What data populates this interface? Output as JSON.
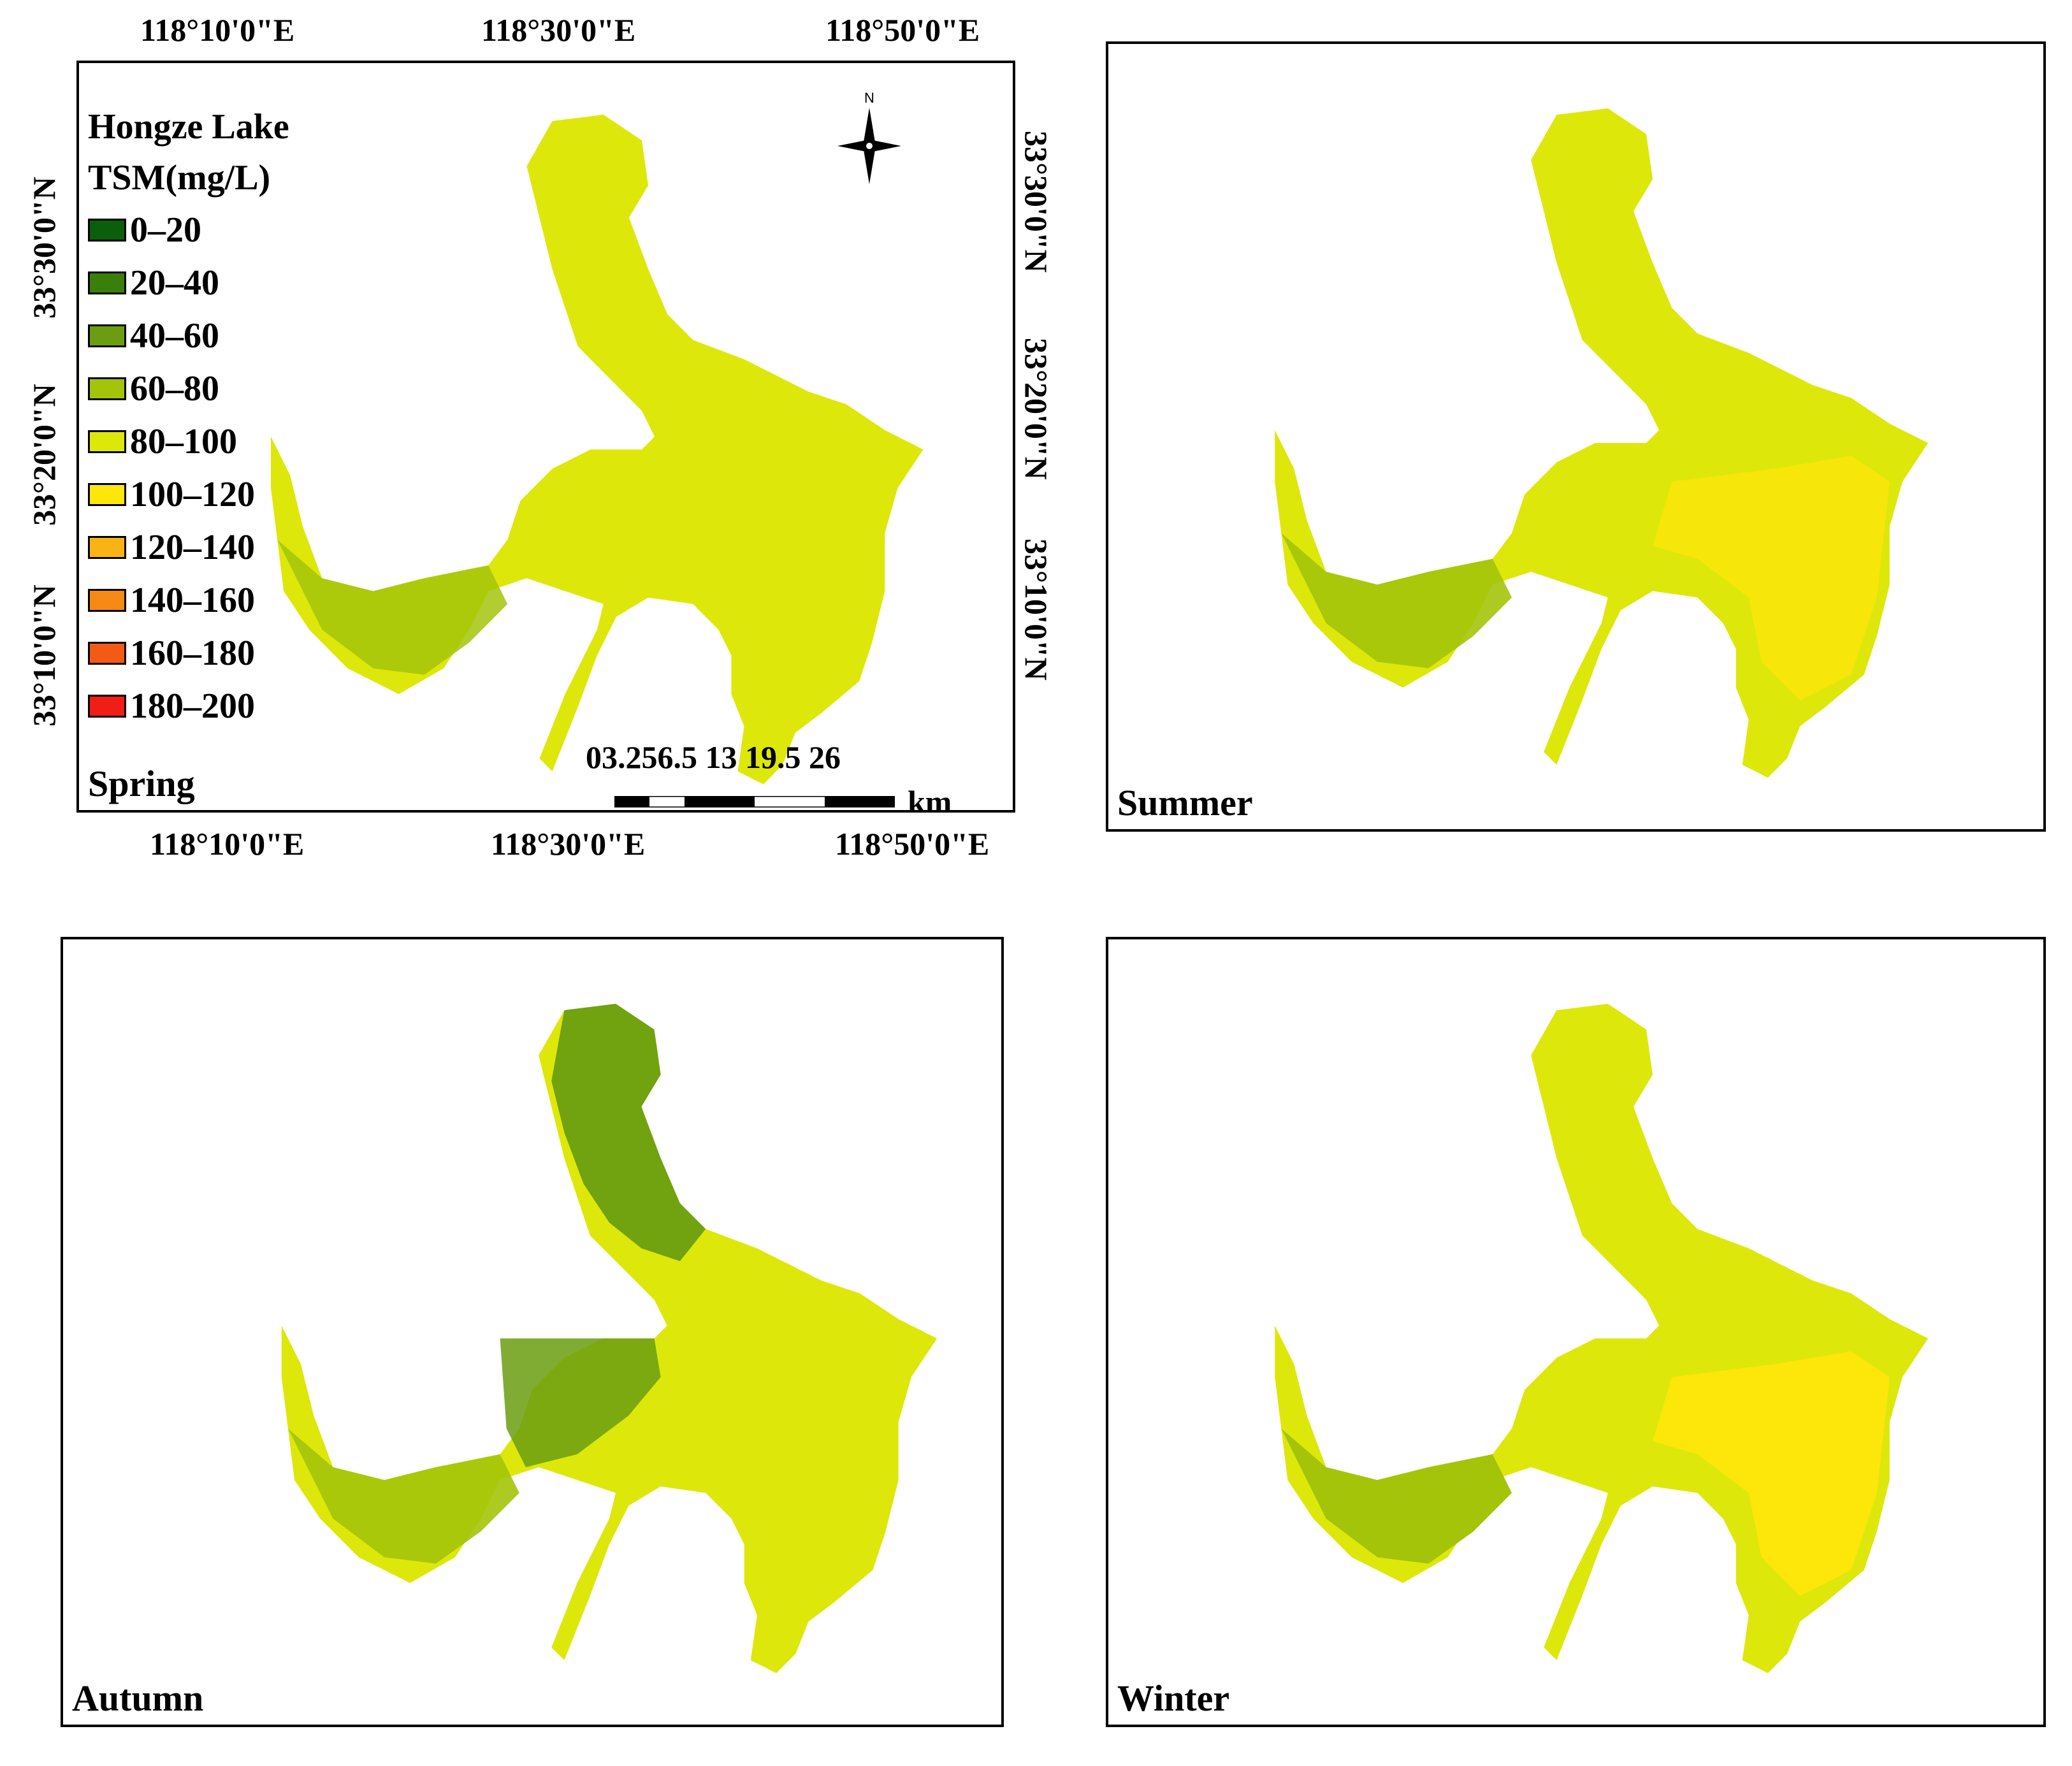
{
  "colors": {
    "c0_20": "#0b5e0b",
    "c20_40": "#3a7f0b",
    "c40_60": "#6a9e10",
    "c60_80": "#a4c40a",
    "c80_100": "#dde80a",
    "c100_120": "#fde60a",
    "c120_140": "#f9b414",
    "c140_160": "#f78a14",
    "c160_180": "#f35a14",
    "c180_200": "#f01e14"
  },
  "spring": {
    "label": "Spring",
    "top_ticks": [
      "118°10'0\"E",
      "118°30'0\"E",
      "118°50'0\"E"
    ],
    "bottom_ticks": [
      "118°10'0\"E",
      "118°30'0\"E",
      "118°50'0\"E"
    ],
    "left_ticks": [
      "33°30'0\"N",
      "33°20'0\"N",
      "33°10'0\"N"
    ],
    "right_ticks": [
      "33°30'0\"N",
      "33°20'0\"N",
      "33°10'0\"N"
    ],
    "legend": {
      "title_line1": "Hongze Lake",
      "title_line2": "TSM(mg/L)",
      "items": [
        "0–20",
        "20–40",
        "40–60",
        "60–80",
        "80–100",
        "100–120",
        "120–140",
        "140–160",
        "160–180",
        "180–200"
      ]
    },
    "north_label": "N",
    "scalebar": {
      "numbers": "03.256.5   13   19.5   26",
      "unit": "km"
    }
  },
  "summer": {
    "label": "Summer"
  },
  "autumn": {
    "label": "Autumn"
  },
  "winter": {
    "label": "Winter"
  }
}
